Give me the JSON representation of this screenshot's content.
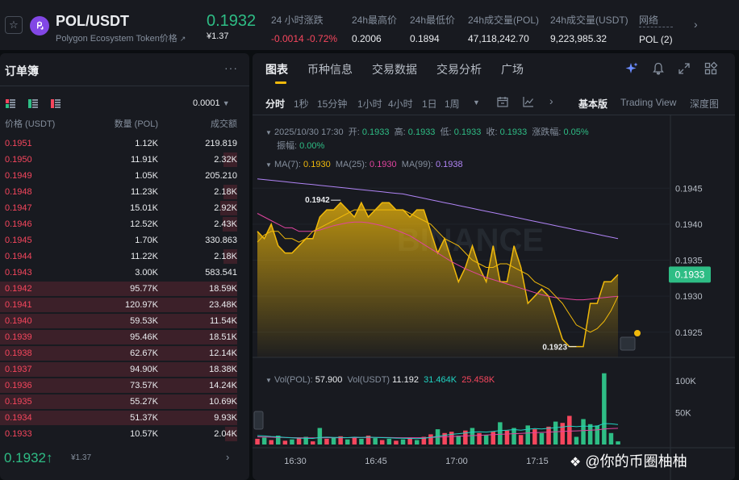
{
  "ticker": {
    "pair": "POL/USDT",
    "subtitle": "Polygon Ecosystem Token价格",
    "subtitle_link_icon": "external-link-icon",
    "price": "0.1932",
    "price_fiat": "¥1.37",
    "stats": [
      {
        "label": "24 小时涨跌",
        "value": "-0.0014 -0.72%",
        "tone": "neg"
      },
      {
        "label": "24h最高价",
        "value": "0.2006",
        "tone": ""
      },
      {
        "label": "24h最低价",
        "value": "0.1894",
        "tone": ""
      },
      {
        "label": "24h成交量(POL)",
        "value": "47,118,242.70",
        "tone": ""
      },
      {
        "label": "24h成交量(USDT)",
        "value": "9,223,985.32",
        "tone": ""
      },
      {
        "label": "网络",
        "value": "POL (2)",
        "tone": ""
      }
    ]
  },
  "order_book": {
    "title": "订单簿",
    "precision": "0.0001",
    "headers": {
      "price": "价格 (USDT)",
      "qty": "数量 (POL)",
      "total": "成交额"
    },
    "asks": [
      {
        "price": "0.1951",
        "qty": "1.12K",
        "total": "219.819",
        "depth": 0.0
      },
      {
        "price": "0.1950",
        "qty": "11.91K",
        "total": "2.32K",
        "depth": 0.22
      },
      {
        "price": "0.1949",
        "qty": "1.05K",
        "total": "205.210",
        "depth": 0.0
      },
      {
        "price": "0.1948",
        "qty": "11.23K",
        "total": "2.18K",
        "depth": 0.22
      },
      {
        "price": "0.1947",
        "qty": "15.01K",
        "total": "2.92K",
        "depth": 0.27
      },
      {
        "price": "0.1946",
        "qty": "12.52K",
        "total": "2.43K",
        "depth": 0.23
      },
      {
        "price": "0.1945",
        "qty": "1.70K",
        "total": "330.863",
        "depth": 0.0
      },
      {
        "price": "0.1944",
        "qty": "11.22K",
        "total": "2.18K",
        "depth": 0.22
      },
      {
        "price": "0.1943",
        "qty": "3.00K",
        "total": "583.541",
        "depth": 0.0
      },
      {
        "price": "0.1942",
        "qty": "95.77K",
        "total": "18.59K",
        "depth": 0.99
      },
      {
        "price": "0.1941",
        "qty": "120.97K",
        "total": "23.48K",
        "depth": 0.99
      },
      {
        "price": "0.1940",
        "qty": "59.53K",
        "total": "11.54K",
        "depth": 0.99
      },
      {
        "price": "0.1939",
        "qty": "95.46K",
        "total": "18.51K",
        "depth": 0.99
      },
      {
        "price": "0.1938",
        "qty": "62.67K",
        "total": "12.14K",
        "depth": 0.99
      },
      {
        "price": "0.1937",
        "qty": "94.90K",
        "total": "18.38K",
        "depth": 0.99
      },
      {
        "price": "0.1936",
        "qty": "73.57K",
        "total": "14.24K",
        "depth": 0.99
      },
      {
        "price": "0.1935",
        "qty": "55.27K",
        "total": "10.69K",
        "depth": 0.99
      },
      {
        "price": "0.1934",
        "qty": "51.37K",
        "total": "9.93K",
        "depth": 0.99
      },
      {
        "price": "0.1933",
        "qty": "10.57K",
        "total": "2.04K",
        "depth": 0.19
      }
    ],
    "last_price": "0.1932↑",
    "last_price_fiat": "¥1.37"
  },
  "chart_panel": {
    "tabs": [
      "图表",
      "币种信息",
      "交易数据",
      "交易分析",
      "广场"
    ],
    "active_tab": 0,
    "intervals": [
      "分时",
      "1秒",
      "15分钟",
      "1小时",
      "4小时",
      "1日",
      "1周"
    ],
    "active_interval": 0,
    "view_modes": [
      "基本版",
      "Trading View",
      "深度图"
    ],
    "active_view": 0
  },
  "chart_data": {
    "type": "area",
    "ohlc_info": {
      "date": "2025/10/30 17:30",
      "open_label": "开:",
      "open": "0.1933",
      "high_label": "高:",
      "high": "0.1933",
      "low_label": "低:",
      "low": "0.1933",
      "close_label": "收:",
      "close": "0.1933",
      "change_label": "涨跌幅:",
      "change": "0.05%",
      "amp_label": "振幅:",
      "amp": "0.00%"
    },
    "ma_legend": [
      {
        "name": "MA(7):",
        "value": "0.1930",
        "color": "#f0b90b"
      },
      {
        "name": "MA(25):",
        "value": "0.1930",
        "color": "#e0449f"
      },
      {
        "name": "MA(99):",
        "value": "0.1938",
        "color": "#b084f5"
      }
    ],
    "y_axis": {
      "ticks": [
        "0.1945",
        "0.1940",
        "0.1935",
        "0.1930",
        "0.1925"
      ],
      "min": 0.19215,
      "max": 0.19475
    },
    "current_price_label": "0.1933",
    "high_annotation": "0.1942",
    "low_annotation": "0.1923",
    "price_series": [
      0.1939,
      0.1938,
      0.194,
      0.1937,
      0.1936,
      0.1936,
      0.1937,
      0.1938,
      0.1938,
      0.1941,
      0.1942,
      0.1942,
      0.1943,
      0.1942,
      0.1941,
      0.1943,
      0.1941,
      0.1942,
      0.1943,
      0.1943,
      0.1942,
      0.1942,
      0.1941,
      0.1942,
      0.1942,
      0.1939,
      0.1936,
      0.1938,
      0.1935,
      0.1932,
      0.1934,
      0.1937,
      0.1934,
      0.1932,
      0.1937,
      0.1932,
      0.1932,
      0.1937,
      0.1934,
      0.1929,
      0.193,
      0.1931,
      0.193,
      0.1927,
      0.1924,
      0.1923,
      0.1923,
      0.1923,
      0.1929,
      0.1929,
      0.1932,
      0.1932,
      0.1933
    ],
    "ma7": [
      0.19375,
      0.19385,
      0.1939,
      0.1939,
      0.1938,
      0.1938,
      0.19375,
      0.1938,
      0.1939,
      0.19395,
      0.194,
      0.19405,
      0.1941,
      0.19415,
      0.1942,
      0.1942,
      0.1942,
      0.1942,
      0.1942,
      0.1942,
      0.1942,
      0.1942,
      0.19415,
      0.1941,
      0.19405,
      0.194,
      0.1939,
      0.1938,
      0.19375,
      0.1937,
      0.1936,
      0.1935,
      0.19345,
      0.1934,
      0.1934,
      0.19345,
      0.19345,
      0.1934,
      0.19335,
      0.1933,
      0.1932,
      0.19315,
      0.1931,
      0.193,
      0.1929,
      0.19275,
      0.1926,
      0.19255,
      0.1925,
      0.19255,
      0.19265,
      0.1928,
      0.193
    ],
    "ma25": [
      0.19415,
      0.1941,
      0.19405,
      0.194,
      0.19395,
      0.19395,
      0.1939,
      0.1939,
      0.1939,
      0.19392,
      0.19395,
      0.19398,
      0.194,
      0.19402,
      0.19403,
      0.19403,
      0.19402,
      0.194,
      0.19398,
      0.19395,
      0.19392,
      0.19388,
      0.19384,
      0.19378,
      0.19372,
      0.19366,
      0.1936,
      0.19354,
      0.19348,
      0.19343,
      0.19338,
      0.19334,
      0.1933,
      0.19326,
      0.19323,
      0.1932,
      0.19317,
      0.19314,
      0.19311,
      0.19308,
      0.19305,
      0.19302,
      0.193,
      0.19298,
      0.19297,
      0.19296,
      0.19295,
      0.19295,
      0.19296,
      0.19297,
      0.19298,
      0.19299,
      0.193
    ],
    "ma99": [
      0.19463,
      0.19462,
      0.19461,
      0.1946,
      0.19459,
      0.19458,
      0.19457,
      0.19456,
      0.19455,
      0.19454,
      0.19453,
      0.19452,
      0.19451,
      0.1945,
      0.19449,
      0.19448,
      0.19447,
      0.19446,
      0.19445,
      0.19444,
      0.19443,
      0.19442,
      0.1944,
      0.19438,
      0.19436,
      0.19434,
      0.19432,
      0.1943,
      0.19428,
      0.19426,
      0.19424,
      0.19422,
      0.1942,
      0.19418,
      0.19416,
      0.19414,
      0.19412,
      0.1941,
      0.19408,
      0.19406,
      0.19404,
      0.19402,
      0.194,
      0.19398,
      0.19396,
      0.19394,
      0.19392,
      0.1939,
      0.19388,
      0.19386,
      0.19384,
      0.19382,
      0.1938
    ],
    "volume_legend": {
      "pol_label": "Vol(POL):",
      "pol": "57.900",
      "usdt_label": "Vol(USDT)",
      "usdt": "11.192",
      "ma1": "31.464K",
      "ma2": "25.458K"
    },
    "volume_axis": {
      "ticks": [
        "100K",
        "50K"
      ],
      "max": 118000
    },
    "volume": [
      {
        "v": 9000,
        "up": false
      },
      {
        "v": 11000,
        "up": true
      },
      {
        "v": 7000,
        "up": false
      },
      {
        "v": 14000,
        "up": true
      },
      {
        "v": 6000,
        "up": false
      },
      {
        "v": 8000,
        "up": true
      },
      {
        "v": 10000,
        "up": false
      },
      {
        "v": 12000,
        "up": true
      },
      {
        "v": 5000,
        "up": false
      },
      {
        "v": 26000,
        "up": true
      },
      {
        "v": 9000,
        "up": false
      },
      {
        "v": 11000,
        "up": true
      },
      {
        "v": 13000,
        "up": false
      },
      {
        "v": 8000,
        "up": true
      },
      {
        "v": 12000,
        "up": false
      },
      {
        "v": 9000,
        "up": true
      },
      {
        "v": 14000,
        "up": false
      },
      {
        "v": 10000,
        "up": true
      },
      {
        "v": 7000,
        "up": false
      },
      {
        "v": 9000,
        "up": true
      },
      {
        "v": 6000,
        "up": false
      },
      {
        "v": 8000,
        "up": true
      },
      {
        "v": 10000,
        "up": false
      },
      {
        "v": 7000,
        "up": true
      },
      {
        "v": 12000,
        "up": false
      },
      {
        "v": 16000,
        "up": false
      },
      {
        "v": 24000,
        "up": true
      },
      {
        "v": 18000,
        "up": false
      },
      {
        "v": 20000,
        "up": false
      },
      {
        "v": 14000,
        "up": true
      },
      {
        "v": 22000,
        "up": false
      },
      {
        "v": 26000,
        "up": true
      },
      {
        "v": 18000,
        "up": false
      },
      {
        "v": 15000,
        "up": true
      },
      {
        "v": 20000,
        "up": false
      },
      {
        "v": 35000,
        "up": true
      },
      {
        "v": 22000,
        "up": false
      },
      {
        "v": 26000,
        "up": true
      },
      {
        "v": 15000,
        "up": false
      },
      {
        "v": 30000,
        "up": true
      },
      {
        "v": 24000,
        "up": false
      },
      {
        "v": 18000,
        "up": true
      },
      {
        "v": 28000,
        "up": false
      },
      {
        "v": 36000,
        "up": true
      },
      {
        "v": 34000,
        "up": false
      },
      {
        "v": 45000,
        "up": false
      },
      {
        "v": 12000,
        "up": true
      },
      {
        "v": 40000,
        "up": true
      },
      {
        "v": 32000,
        "up": true
      },
      {
        "v": 30000,
        "up": true
      },
      {
        "v": 112000,
        "up": true
      },
      {
        "v": 18000,
        "up": true
      },
      {
        "v": 5000,
        "up": true
      }
    ],
    "vol_ma1": [
      14000,
      13500,
      12500,
      12000,
      11000,
      10500,
      10000,
      9800,
      9500,
      11000,
      11500,
      11200,
      11000,
      10800,
      11500,
      11000,
      11500,
      11200,
      10800,
      10500,
      10000,
      9800,
      9500,
      9300,
      9800,
      11000,
      13000,
      14500,
      16000,
      17000,
      18000,
      19500,
      20000,
      19500,
      20500,
      22000,
      22500,
      23500,
      22500,
      24000,
      25000,
      24500,
      25500,
      26500,
      27500,
      29000,
      28000,
      29000,
      28500,
      29000,
      33000,
      32500,
      31500
    ],
    "vol_ma2": [
      12000,
      11800,
      11500,
      11200,
      11000,
      10800,
      10600,
      10500,
      10400,
      10500,
      10600,
      10700,
      10700,
      10800,
      10800,
      10900,
      11000,
      11000,
      11000,
      10900,
      10800,
      10700,
      10600,
      10600,
      10700,
      11000,
      11500,
      12000,
      12500,
      13000,
      13500,
      14000,
      14500,
      15000,
      15500,
      16000,
      16500,
      17000,
      17500,
      18000,
      18500,
      19000,
      19500,
      20000,
      20500,
      21000,
      21500,
      22000,
      22500,
      23000,
      24500,
      25000,
      25500
    ],
    "x_ticks": [
      "16:30",
      "16:45",
      "17:00",
      "17:15"
    ],
    "watermark": "BINANCE"
  },
  "overlay": {
    "watermark_text": "@你的币圈柚柚"
  },
  "colors": {
    "up": "#2ebd85",
    "down": "#f6465d",
    "accent": "#f0b90b"
  }
}
